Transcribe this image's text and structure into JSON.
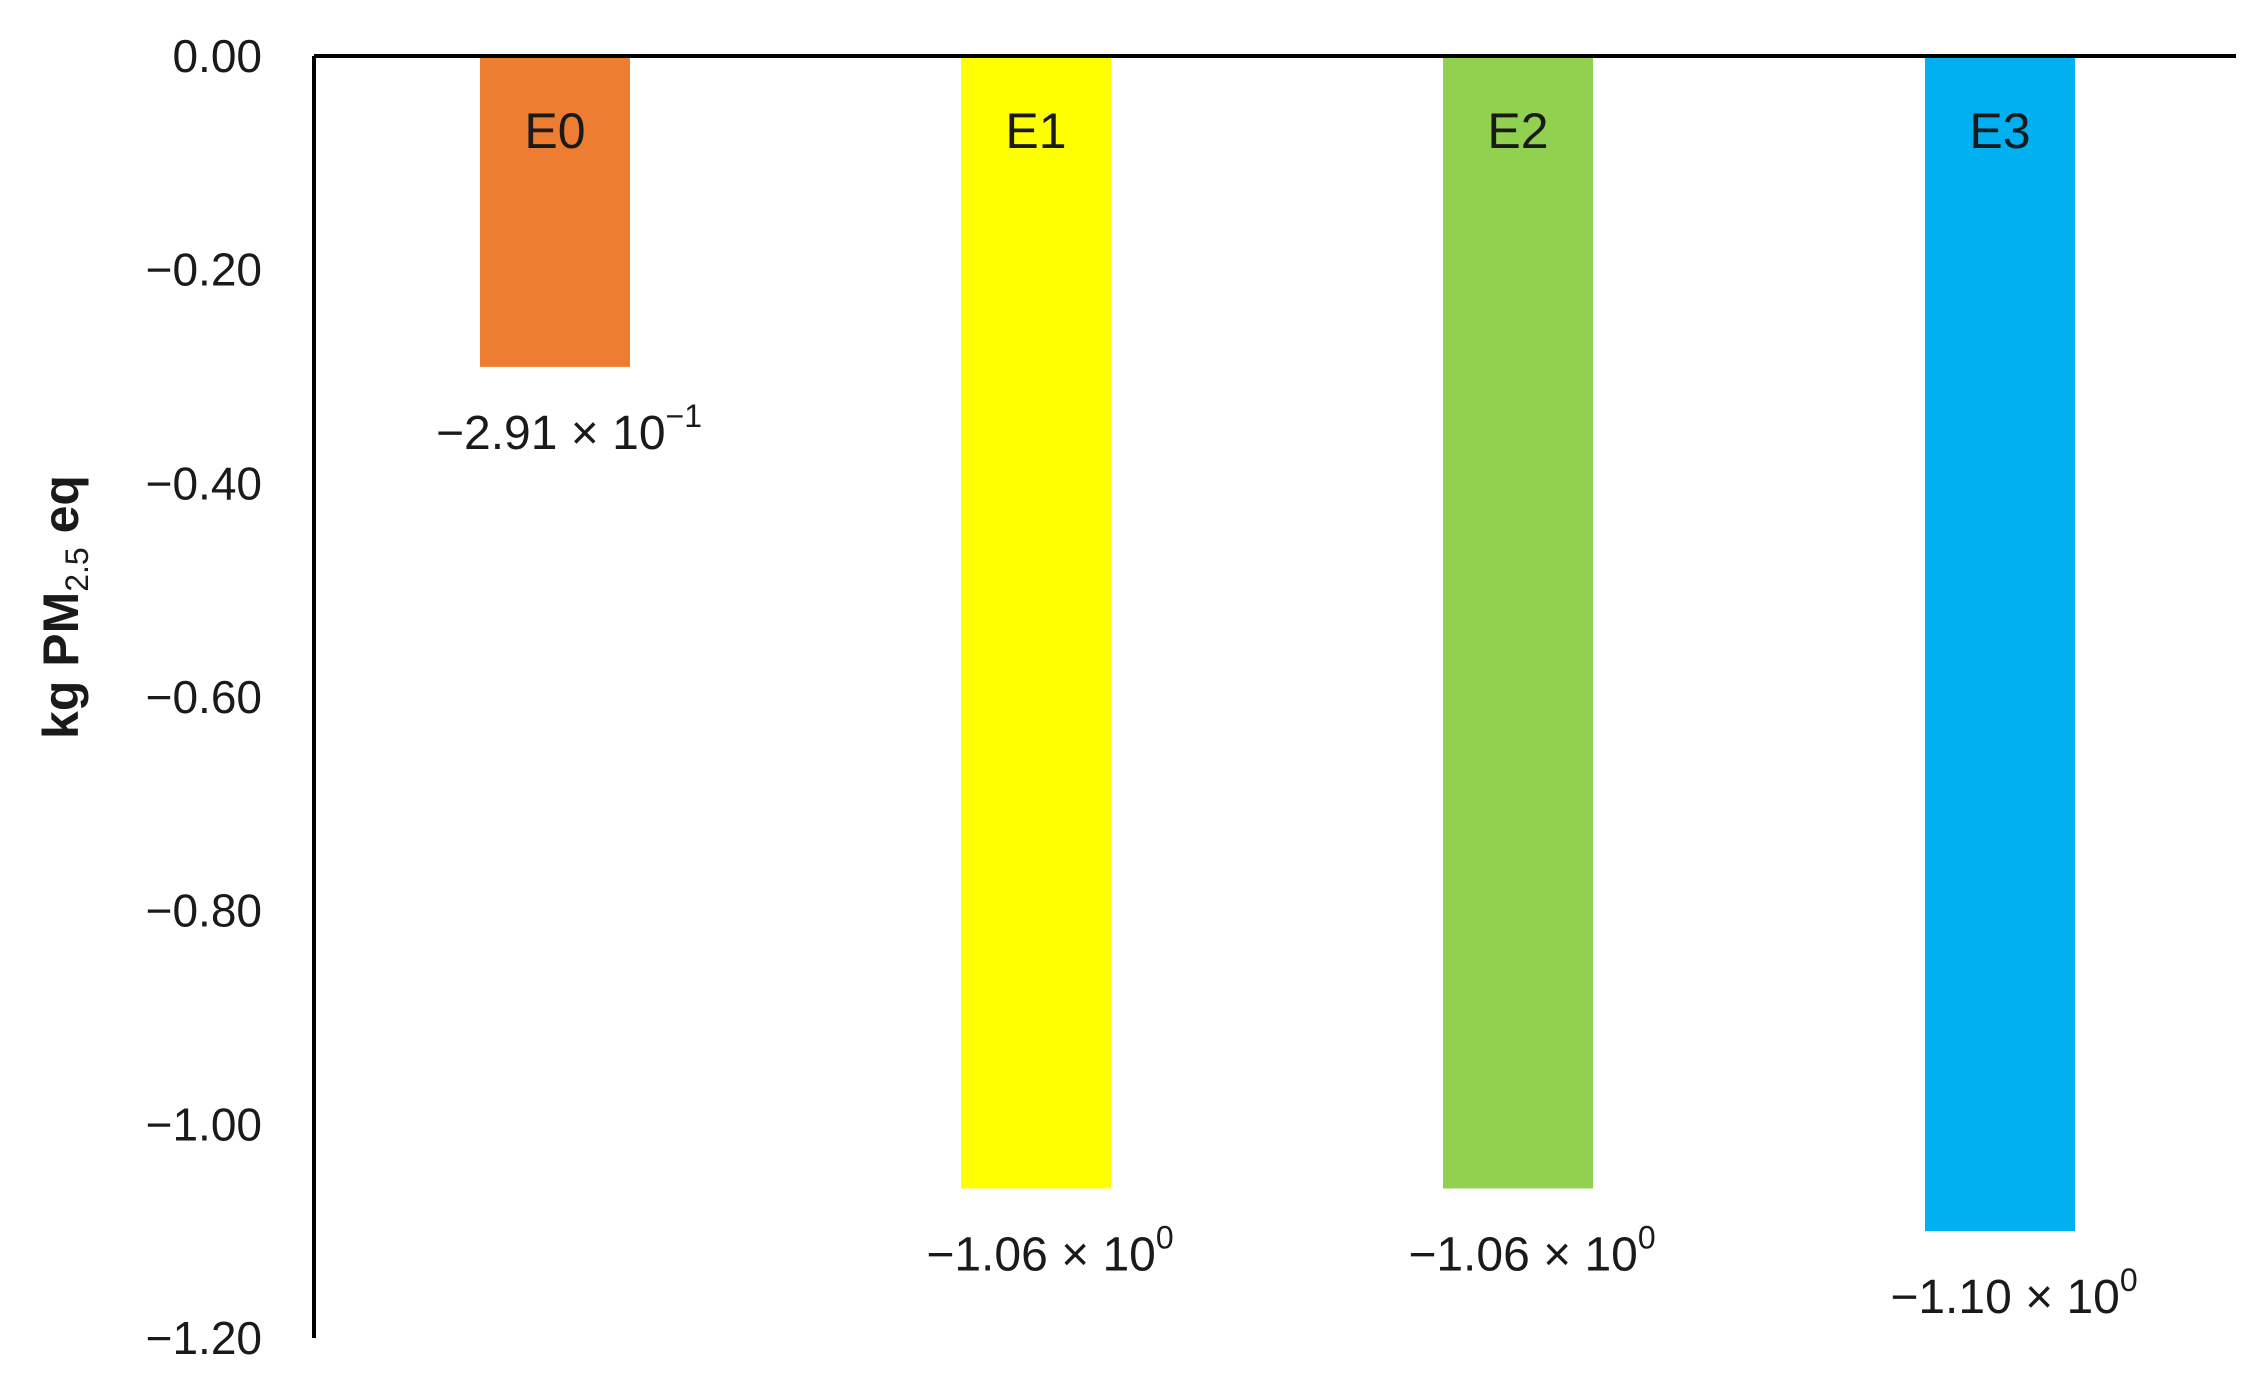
{
  "chart_data": {
    "type": "bar",
    "categories": [
      "E0",
      "E1",
      "E2",
      "E3"
    ],
    "values": [
      -0.291,
      -1.06,
      -1.06,
      -1.1
    ],
    "data_labels": [
      {
        "mantissa": "−2.91 × 10",
        "exponent": "−1"
      },
      {
        "mantissa": "−1.06 × 10",
        "exponent": "0"
      },
      {
        "mantissa": "−1.06 × 10",
        "exponent": "0"
      },
      {
        "mantissa": "−1.10 × 10",
        "exponent": "0"
      }
    ],
    "colors": [
      "#ED7D31",
      "#FFFF00",
      "#92D050",
      "#00B0F0"
    ],
    "ylabel": {
      "main": "kg PM",
      "sub": "2.5",
      "suffix": " eq"
    },
    "ylim": [
      -1.2,
      0
    ],
    "yticks": [
      0,
      -0.2,
      -0.4,
      -0.6,
      -0.8,
      -1.0,
      -1.2
    ],
    "ytick_labels": [
      "0.00",
      "−0.20",
      "−0.40",
      "−0.60",
      "−0.80",
      "−1.00",
      "−1.20"
    ],
    "grid": false,
    "legend": "none",
    "category_label_position": "inside-top-of-bar"
  }
}
